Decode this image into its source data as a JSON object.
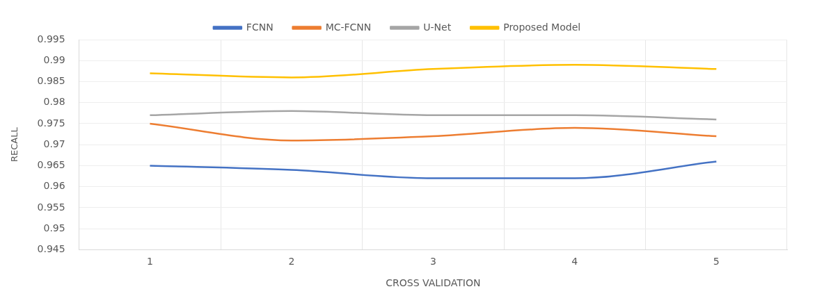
{
  "chart_data": {
    "type": "line",
    "xlabel": "CROSS VALIDATION",
    "ylabel": "RECALL",
    "categories": [
      "1",
      "2",
      "3",
      "4",
      "5"
    ],
    "series": [
      {
        "name": "FCNN",
        "color": "#4472c4",
        "values": [
          0.965,
          0.964,
          0.962,
          0.962,
          0.966
        ]
      },
      {
        "name": "MC-FCNN",
        "color": "#ed7d31",
        "values": [
          0.975,
          0.971,
          0.972,
          0.974,
          0.972
        ]
      },
      {
        "name": "U-Net",
        "color": "#a5a5a5",
        "values": [
          0.977,
          0.978,
          0.977,
          0.977,
          0.976
        ]
      },
      {
        "name": "Proposed Model",
        "color": "#ffc000",
        "values": [
          0.987,
          0.986,
          0.988,
          0.989,
          0.988
        ]
      }
    ],
    "ylim": [
      0.945,
      0.995
    ],
    "yticks": [
      0.945,
      0.95,
      0.955,
      0.96,
      0.965,
      0.97,
      0.975,
      0.98,
      0.985,
      0.99,
      0.995
    ],
    "grid": true,
    "legend": "top",
    "marker": "none",
    "line_style": "solid"
  }
}
